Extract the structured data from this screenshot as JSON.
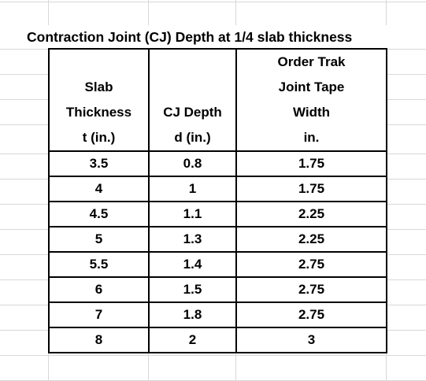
{
  "title": "Contraction Joint (CJ) Depth at 1/4 slab thickness",
  "headers": {
    "col1": [
      "",
      "Slab",
      "Thickness",
      "t (in.)"
    ],
    "col2": [
      "",
      "",
      "CJ Depth",
      "d (in.)"
    ],
    "col3": [
      "Order Trak",
      "Joint Tape",
      "Width",
      "in."
    ]
  },
  "rows": [
    {
      "thickness": "3.5",
      "depth": "0.8",
      "tape_width": "1.75"
    },
    {
      "thickness": "4",
      "depth": "1",
      "tape_width": "1.75"
    },
    {
      "thickness": "4.5",
      "depth": "1.1",
      "tape_width": "2.25"
    },
    {
      "thickness": "5",
      "depth": "1.3",
      "tape_width": "2.25"
    },
    {
      "thickness": "5.5",
      "depth": "1.4",
      "tape_width": "2.75"
    },
    {
      "thickness": "6",
      "depth": "1.5",
      "tape_width": "2.75"
    },
    {
      "thickness": "7",
      "depth": "1.8",
      "tape_width": "2.75"
    },
    {
      "thickness": "8",
      "depth": "2",
      "tape_width": "3"
    }
  ]
}
